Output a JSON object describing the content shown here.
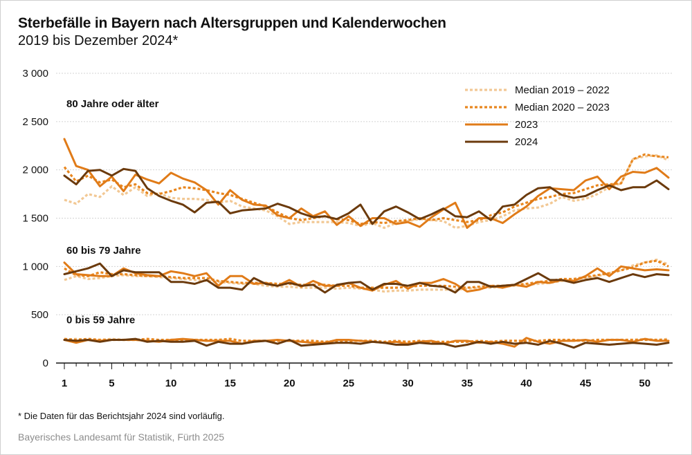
{
  "title": "Sterbefälle in Bayern nach Altersgruppen und Kalenderwochen",
  "subtitle": "2019 bis Dezember 2024*",
  "footnote": "* Die Daten für das Berichtsjahr 2024 sind vorläufig.",
  "source": "Bayerisches Landesamt für Statistik, Fürth 2025",
  "chart_data": {
    "type": "line",
    "xlim": [
      1,
      52
    ],
    "ylim": [
      0,
      3000
    ],
    "x_ticks": [
      1,
      5,
      10,
      15,
      20,
      25,
      30,
      35,
      40,
      45,
      50
    ],
    "y_ticks": [
      0,
      500,
      1000,
      1500,
      2000,
      2500,
      3000
    ],
    "y_tick_labels": [
      "0",
      "500",
      "1 000",
      "1 500",
      "2 000",
      "2 500",
      "3 000"
    ],
    "gridlines": "horizontal",
    "legend_position": "top-right",
    "legend": [
      {
        "label": "Median 2019 – 2022",
        "color": "#f2c894",
        "style": "dotted"
      },
      {
        "label": "Median 2020 – 2023",
        "color": "#e8861e",
        "style": "dotted"
      },
      {
        "label": "2023",
        "color": "#e07b18",
        "style": "solid"
      },
      {
        "label": "2024",
        "color": "#6b3a0c",
        "style": "solid"
      }
    ],
    "groups": [
      {
        "label": "80 Jahre oder älter",
        "series": [
          {
            "name": "Median 2019 – 2022",
            "values": [
              1690,
              1650,
              1750,
              1720,
              1830,
              1740,
              1820,
              1730,
              1760,
              1710,
              1700,
              1700,
              1690,
              1660,
              1680,
              1620,
              1600,
              1580,
              1520,
              1440,
              1460,
              1460,
              1460,
              1460,
              1450,
              1420,
              1450,
              1400,
              1450,
              1470,
              1490,
              1480,
              1470,
              1400,
              1420,
              1460,
              1480,
              1520,
              1580,
              1600,
              1610,
              1650,
              1720,
              1680,
              1700,
              1750,
              1820,
              1860,
              2110,
              2140,
              2150,
              2100
            ]
          },
          {
            "name": "Median 2020 – 2023",
            "values": [
              2030,
              1880,
              1940,
              1870,
              1900,
              1820,
              1850,
              1760,
              1750,
              1780,
              1820,
              1810,
              1790,
              1760,
              1740,
              1700,
              1660,
              1620,
              1560,
              1500,
              1480,
              1500,
              1520,
              1490,
              1480,
              1440,
              1460,
              1450,
              1470,
              1480,
              1500,
              1480,
              1500,
              1480,
              1460,
              1480,
              1530,
              1560,
              1620,
              1660,
              1700,
              1720,
              1750,
              1760,
              1800,
              1840,
              1850,
              1860,
              2110,
              2160,
              2140,
              2130
            ]
          },
          {
            "name": "2023",
            "values": [
              2320,
              2040,
              2000,
              1830,
              1930,
              1780,
              1950,
              1900,
              1860,
              1970,
              1910,
              1870,
              1790,
              1640,
              1790,
              1690,
              1640,
              1630,
              1530,
              1500,
              1600,
              1520,
              1570,
              1430,
              1520,
              1420,
              1500,
              1500,
              1440,
              1460,
              1410,
              1510,
              1590,
              1660,
              1400,
              1500,
              1500,
              1450,
              1540,
              1620,
              1730,
              1810,
              1800,
              1790,
              1890,
              1930,
              1800,
              1930,
              1980,
              1970,
              2020,
              1920
            ]
          },
          {
            "name": "2024",
            "values": [
              1940,
              1850,
              1990,
              2000,
              1940,
              2010,
              1990,
              1810,
              1730,
              1680,
              1640,
              1560,
              1660,
              1670,
              1550,
              1580,
              1590,
              1600,
              1650,
              1610,
              1550,
              1510,
              1520,
              1490,
              1550,
              1640,
              1440,
              1570,
              1620,
              1560,
              1490,
              1540,
              1600,
              1520,
              1510,
              1570,
              1480,
              1620,
              1640,
              1740,
              1810,
              1820,
              1740,
              1710,
              1730,
              1790,
              1840,
              1790,
              1820,
              1820,
              1890,
              1800
            ]
          }
        ]
      },
      {
        "label": "60 bis 79 Jahre",
        "series": [
          {
            "name": "Median 2019 – 2022",
            "values": [
              860,
              900,
              870,
              880,
              900,
              910,
              900,
              900,
              890,
              880,
              870,
              860,
              850,
              840,
              830,
              820,
              820,
              800,
              790,
              790,
              780,
              780,
              780,
              770,
              780,
              770,
              760,
              740,
              750,
              750,
              760,
              760,
              760,
              760,
              770,
              780,
              780,
              790,
              800,
              810,
              820,
              830,
              850,
              860,
              880,
              900,
              930,
              960,
              1010,
              1040,
              1070,
              1020
            ]
          },
          {
            "name": "Median 2020 – 2023",
            "values": [
              980,
              910,
              900,
              940,
              920,
              920,
              910,
              900,
              900,
              890,
              880,
              880,
              880,
              850,
              840,
              830,
              830,
              830,
              820,
              820,
              810,
              810,
              810,
              800,
              800,
              780,
              780,
              780,
              780,
              790,
              800,
              800,
              800,
              790,
              780,
              790,
              800,
              800,
              810,
              820,
              840,
              850,
              870,
              870,
              890,
              910,
              930,
              960,
              990,
              1040,
              1060,
              1000
            ]
          },
          {
            "name": "2023",
            "values": [
              1040,
              920,
              910,
              900,
              900,
              980,
              930,
              910,
              900,
              950,
              930,
              900,
              930,
              800,
              900,
              900,
              820,
              830,
              800,
              860,
              790,
              850,
              800,
              800,
              830,
              780,
              750,
              810,
              850,
              770,
              830,
              830,
              870,
              820,
              740,
              760,
              800,
              780,
              810,
              790,
              840,
              830,
              860,
              850,
              900,
              980,
              900,
              1000,
              980,
              960,
              970,
              960
            ]
          },
          {
            "name": "2024",
            "values": [
              920,
              950,
              980,
              1030,
              900,
              960,
              940,
              940,
              940,
              840,
              840,
              820,
              860,
              780,
              780,
              760,
              880,
              820,
              800,
              830,
              800,
              810,
              730,
              810,
              830,
              840,
              760,
              820,
              820,
              800,
              830,
              800,
              790,
              730,
              840,
              840,
              790,
              800,
              810,
              870,
              930,
              860,
              860,
              830,
              860,
              880,
              840,
              880,
              920,
              890,
              920,
              910
            ]
          }
        ]
      },
      {
        "label": "0 bis 59 Jahre",
        "series": [
          {
            "name": "Median 2019 – 2022",
            "values": [
              240,
              250,
              240,
              240,
              250,
              240,
              240,
              240,
              230,
              240,
              240,
              240,
              230,
              240,
              240,
              230,
              230,
              230,
              230,
              230,
              230,
              230,
              220,
              230,
              230,
              230,
              230,
              220,
              220,
              220,
              230,
              220,
              220,
              220,
              220,
              230,
              220,
              230,
              230,
              230,
              230,
              230,
              230,
              230,
              230,
              240,
              240,
              240,
              240,
              250,
              240,
              250
            ]
          },
          {
            "name": "Median 2020 – 2023",
            "values": [
              250,
              240,
              250,
              240,
              240,
              240,
              240,
              250,
              240,
              240,
              240,
              240,
              240,
              240,
              250,
              230,
              230,
              230,
              230,
              230,
              230,
              230,
              220,
              230,
              230,
              230,
              230,
              220,
              230,
              220,
              230,
              220,
              220,
              220,
              220,
              230,
              220,
              230,
              230,
              230,
              230,
              240,
              240,
              240,
              230,
              240,
              240,
              240,
              240,
              240,
              240,
              240
            ]
          },
          {
            "name": "2023",
            "values": [
              240,
              210,
              240,
              230,
              240,
              240,
              240,
              230,
              220,
              240,
              250,
              240,
              230,
              230,
              230,
              200,
              230,
              230,
              240,
              230,
              220,
              210,
              210,
              240,
              240,
              230,
              220,
              210,
              220,
              200,
              220,
              230,
              200,
              230,
              230,
              210,
              220,
              200,
              170,
              260,
              220,
              200,
              230,
              230,
              240,
              220,
              240,
              240,
              220,
              250,
              230,
              230
            ]
          },
          {
            "name": "2024",
            "values": [
              240,
              230,
              240,
              220,
              240,
              240,
              250,
              220,
              230,
              220,
              220,
              230,
              180,
              220,
              200,
              200,
              220,
              230,
              200,
              240,
              180,
              190,
              200,
              210,
              210,
              200,
              220,
              210,
              190,
              190,
              210,
              200,
              200,
              170,
              190,
              220,
              200,
              220,
              200,
              210,
              190,
              230,
              200,
              160,
              210,
              200,
              190,
              200,
              210,
              200,
              190,
              210
            ]
          }
        ]
      }
    ]
  }
}
